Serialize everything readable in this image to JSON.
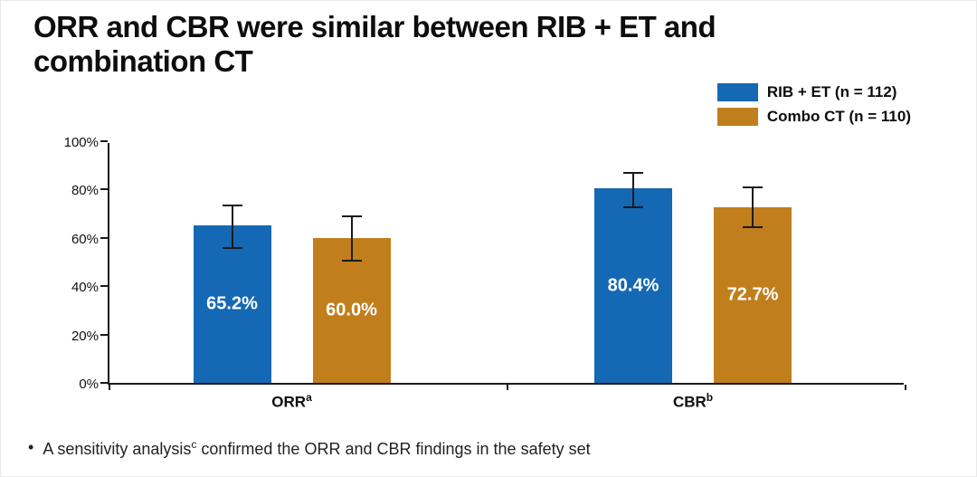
{
  "title": "ORR and CBR were similar between RIB + ET and combination CT",
  "legend": [
    {
      "label": "RIB + ET (n = 112)",
      "color": "#1568B3"
    },
    {
      "label": "Combo CT (n = 110)",
      "color": "#C07E1D"
    }
  ],
  "chart_data": {
    "type": "bar",
    "title": "ORR and CBR were similar between RIB + ET and combination CT",
    "categories": [
      "ORR",
      "CBR"
    ],
    "category_superscripts": [
      "a",
      "b"
    ],
    "series": [
      {
        "name": "RIB + ET (n = 112)",
        "color": "#1568B3",
        "values": [
          65.2,
          80.4
        ],
        "labels": [
          "65.2%",
          "80.4%"
        ],
        "ci_low": [
          55.6,
          72.2
        ],
        "ci_high": [
          73.9,
          87.3
        ]
      },
      {
        "name": "Combo CT (n = 110)",
        "color": "#C07E1D",
        "values": [
          60.0,
          72.7
        ],
        "labels": [
          "60.0%",
          "72.7%"
        ],
        "ci_low": [
          50.2,
          63.9
        ],
        "ci_high": [
          69.2,
          81.2
        ]
      }
    ],
    "xlabel": "",
    "ylabel": "",
    "ylim": [
      0,
      100
    ],
    "ytick_values": [
      0,
      20,
      40,
      60,
      80,
      100
    ],
    "ytick_labels": [
      "0%",
      "20%",
      "40%",
      "60%",
      "80%",
      "100%"
    ],
    "grid": false,
    "legend_position": "top-right",
    "error_bars": true
  },
  "footnote": {
    "bullet": "•",
    "text": "A sensitivity analysis",
    "sup": "c",
    "text_after": " confirmed the ORR and CBR findings in the safety set"
  }
}
